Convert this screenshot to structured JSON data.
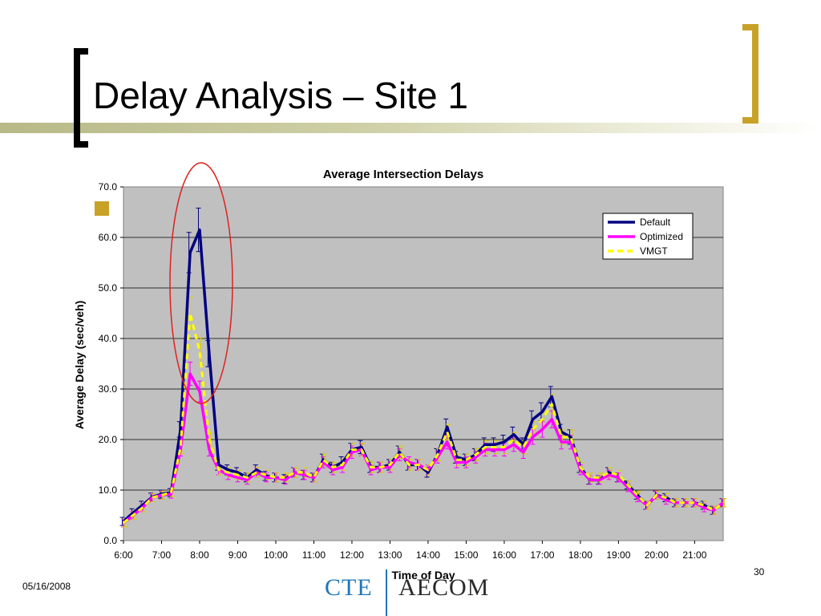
{
  "slide": {
    "title": "Delay Analysis – Site 1",
    "date": "05/16/2008",
    "page_number": "30",
    "logo_left": "CTE",
    "logo_right": "AECOM",
    "accent_color": "#c8a227"
  },
  "chart_data": {
    "type": "line",
    "title": "Average Intersection Delays",
    "xlabel": "Time of Day",
    "ylabel": "Average Delay (sec/veh)",
    "ylim": [
      0,
      70
    ],
    "yticks": [
      "0.0",
      "10.0",
      "20.0",
      "30.0",
      "40.0",
      "50.0",
      "60.0",
      "70.0"
    ],
    "xlim": [
      6.0,
      21.75
    ],
    "xticks": [
      "6:00",
      "7:00",
      "8:00",
      "9:00",
      "10:00",
      "11:00",
      "12:00",
      "13:00",
      "14:00",
      "15:00",
      "16:00",
      "17:00",
      "18:00",
      "19:00",
      "20:00",
      "21:00"
    ],
    "grid": "horizontal",
    "legend_position": "top-right",
    "plot_background": "#c0c0c0",
    "x": [
      6.0,
      6.25,
      6.5,
      6.75,
      7.0,
      7.25,
      7.5,
      7.75,
      8.0,
      8.25,
      8.5,
      8.75,
      9.0,
      9.25,
      9.5,
      9.75,
      10.0,
      10.25,
      10.5,
      10.75,
      11.0,
      11.25,
      11.5,
      11.75,
      12.0,
      12.25,
      12.5,
      12.75,
      13.0,
      13.25,
      13.5,
      13.75,
      14.0,
      14.25,
      14.5,
      14.75,
      15.0,
      15.25,
      15.5,
      15.75,
      16.0,
      16.25,
      16.5,
      16.75,
      17.0,
      17.25,
      17.5,
      17.75,
      18.0,
      18.25,
      18.5,
      18.75,
      19.0,
      19.25,
      19.5,
      19.75,
      20.0,
      20.25,
      20.5,
      20.75,
      21.0,
      21.25,
      21.5,
      21.75
    ],
    "series": [
      {
        "name": "Default",
        "color": "#000080",
        "style": "solid",
        "values": [
          3.8,
          5.5,
          7.0,
          8.6,
          9.2,
          9.5,
          22.0,
          57.0,
          61.5,
          37.0,
          15.0,
          14.0,
          13.5,
          12.5,
          14.0,
          12.8,
          12.5,
          12.2,
          13.5,
          13.0,
          12.5,
          16.0,
          14.5,
          15.5,
          18.0,
          18.5,
          14.5,
          14.5,
          15.0,
          17.5,
          15.0,
          15.0,
          13.5,
          17.0,
          22.5,
          16.5,
          16.0,
          17.0,
          19.0,
          19.0,
          19.5,
          21.0,
          19.0,
          24.0,
          25.5,
          28.5,
          21.5,
          20.5,
          14.5,
          12.0,
          12.0,
          13.5,
          12.5,
          11.0,
          9.0,
          7.0,
          9.0,
          8.5,
          7.5,
          7.5,
          7.5,
          7.0,
          6.0,
          7.5
        ]
      },
      {
        "name": "Optimized",
        "color": "#ff00ff",
        "style": "solid",
        "values": [
          3.5,
          5.0,
          6.5,
          8.5,
          9.0,
          9.2,
          18.0,
          33.0,
          29.5,
          18.0,
          14.0,
          13.0,
          12.5,
          12.0,
          13.5,
          12.5,
          12.5,
          12.0,
          13.5,
          13.0,
          12.5,
          15.5,
          14.0,
          14.5,
          17.5,
          18.0,
          14.0,
          14.5,
          14.5,
          17.0,
          15.5,
          15.0,
          14.0,
          16.5,
          19.5,
          15.5,
          15.5,
          16.5,
          18.0,
          18.0,
          18.0,
          19.0,
          17.5,
          20.5,
          22.0,
          24.0,
          19.5,
          19.5,
          14.0,
          12.0,
          12.0,
          13.0,
          12.5,
          10.5,
          8.5,
          7.0,
          9.0,
          8.0,
          7.5,
          7.5,
          7.5,
          6.5,
          6.0,
          7.5
        ]
      },
      {
        "name": "VMGT",
        "color": "#ffff00",
        "style": "dashed",
        "values": [
          3.5,
          5.0,
          6.5,
          8.5,
          9.0,
          9.5,
          18.5,
          45.0,
          37.5,
          20.0,
          14.0,
          13.5,
          13.0,
          12.5,
          13.5,
          13.0,
          12.5,
          12.5,
          13.5,
          13.5,
          12.5,
          16.0,
          14.5,
          15.0,
          18.0,
          18.0,
          14.5,
          14.5,
          15.0,
          17.5,
          15.0,
          15.0,
          14.0,
          17.0,
          21.5,
          16.0,
          16.0,
          17.0,
          18.5,
          18.5,
          18.5,
          20.0,
          18.5,
          22.0,
          24.0,
          27.0,
          20.5,
          20.5,
          14.5,
          12.5,
          12.5,
          13.5,
          13.0,
          11.0,
          9.0,
          7.0,
          9.0,
          8.5,
          7.5,
          7.5,
          7.5,
          7.0,
          6.0,
          7.5
        ]
      }
    ]
  }
}
